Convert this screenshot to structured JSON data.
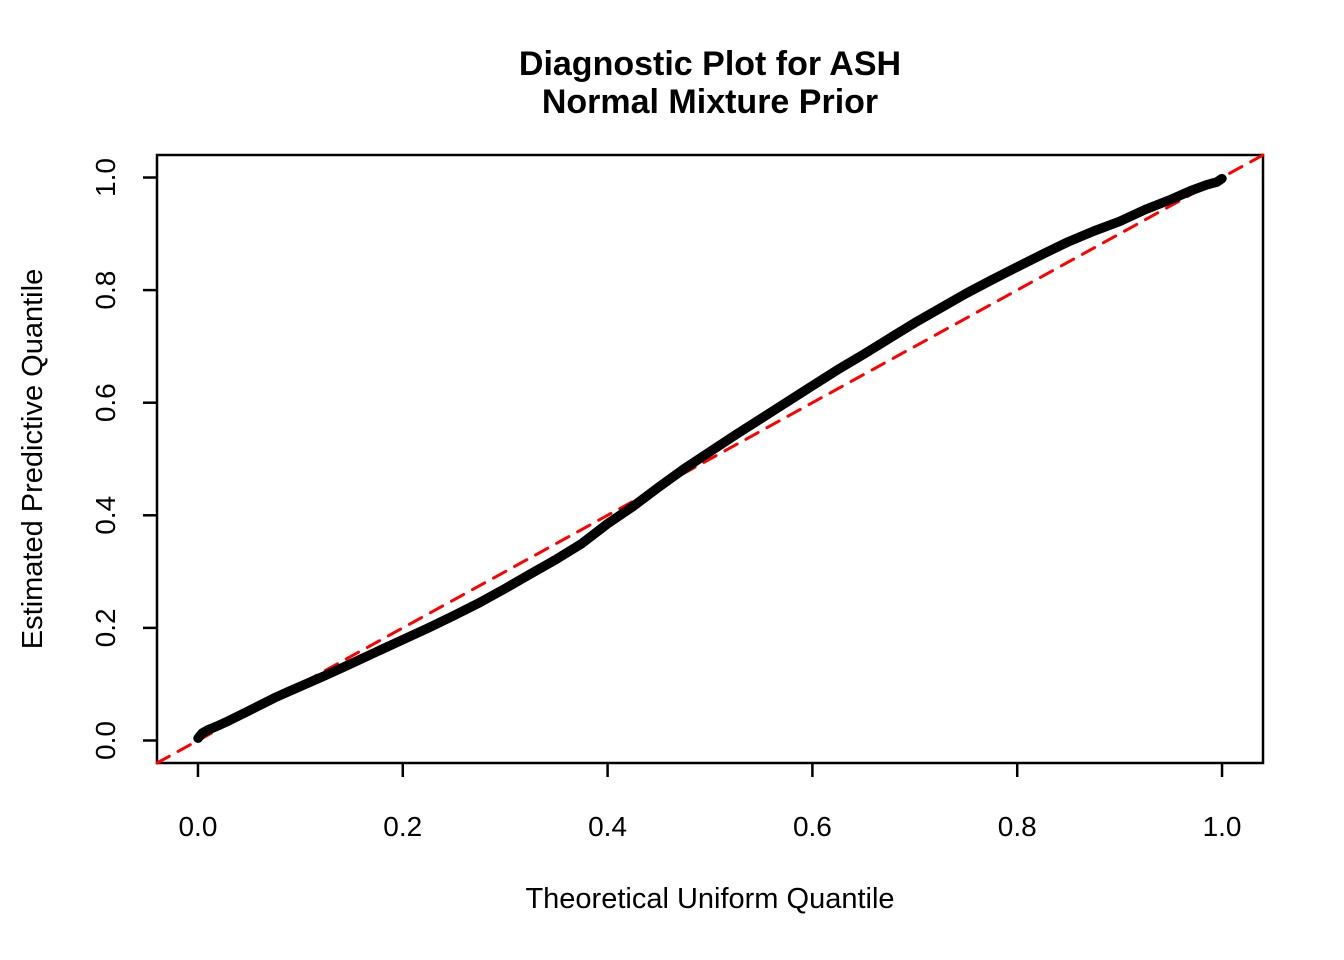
{
  "title_lines": [
    "Diagnostic Plot for ASH",
    "Normal Mixture Prior"
  ],
  "colors": {
    "curve": "#000000",
    "reference_line": "#ff0000",
    "axis": "#000000",
    "background": "#ffffff"
  },
  "chart_data": {
    "type": "line",
    "title": "Diagnostic Plot for ASH\nNormal Mixture Prior",
    "xlabel": "Theoretical Uniform Quantile",
    "ylabel": "Estimated Predictive Quantile",
    "xlim": [
      -0.04,
      1.04
    ],
    "ylim": [
      -0.04,
      1.04
    ],
    "x_ticks": [
      0.0,
      0.2,
      0.4,
      0.6,
      0.8,
      1.0
    ],
    "y_ticks": [
      0.0,
      0.2,
      0.4,
      0.6,
      0.8,
      1.0
    ],
    "x_tick_labels": [
      "0.0",
      "0.2",
      "0.4",
      "0.6",
      "0.8",
      "1.0"
    ],
    "y_tick_labels": [
      "0.0",
      "0.2",
      "0.4",
      "0.6",
      "0.8",
      "1.0"
    ],
    "grid": false,
    "legend": "none",
    "series": [
      {
        "name": "estimated-predictive-quantile-curve",
        "type": "line",
        "color": "#000000",
        "line_width": 9.5,
        "line_style": "solid",
        "points": [
          [
            0.0,
            0.004
          ],
          [
            0.004,
            0.013
          ],
          [
            0.01,
            0.019
          ],
          [
            0.018,
            0.025
          ],
          [
            0.03,
            0.035
          ],
          [
            0.05,
            0.053
          ],
          [
            0.075,
            0.076
          ],
          [
            0.09,
            0.088
          ],
          [
            0.1,
            0.096
          ],
          [
            0.125,
            0.116
          ],
          [
            0.15,
            0.137
          ],
          [
            0.175,
            0.158
          ],
          [
            0.2,
            0.179
          ],
          [
            0.225,
            0.2
          ],
          [
            0.25,
            0.222
          ],
          [
            0.275,
            0.245
          ],
          [
            0.3,
            0.27
          ],
          [
            0.325,
            0.296
          ],
          [
            0.35,
            0.322
          ],
          [
            0.375,
            0.35
          ],
          [
            0.4,
            0.385
          ],
          [
            0.425,
            0.416
          ],
          [
            0.45,
            0.45
          ],
          [
            0.475,
            0.483
          ],
          [
            0.5,
            0.513
          ],
          [
            0.525,
            0.543
          ],
          [
            0.55,
            0.572
          ],
          [
            0.575,
            0.601
          ],
          [
            0.6,
            0.63
          ],
          [
            0.625,
            0.659
          ],
          [
            0.65,
            0.686
          ],
          [
            0.675,
            0.714
          ],
          [
            0.7,
            0.742
          ],
          [
            0.725,
            0.768
          ],
          [
            0.75,
            0.794
          ],
          [
            0.775,
            0.818
          ],
          [
            0.8,
            0.841
          ],
          [
            0.825,
            0.864
          ],
          [
            0.85,
            0.886
          ],
          [
            0.875,
            0.905
          ],
          [
            0.9,
            0.922
          ],
          [
            0.925,
            0.943
          ],
          [
            0.95,
            0.961
          ],
          [
            0.97,
            0.977
          ],
          [
            0.985,
            0.987
          ],
          [
            0.995,
            0.992
          ],
          [
            1.0,
            0.998
          ]
        ]
      },
      {
        "name": "identity-reference-line",
        "type": "line",
        "color": "#ff0000",
        "line_width": 3,
        "line_style": "dashed",
        "points": [
          [
            -0.04,
            -0.04
          ],
          [
            1.04,
            1.04
          ]
        ]
      }
    ]
  }
}
